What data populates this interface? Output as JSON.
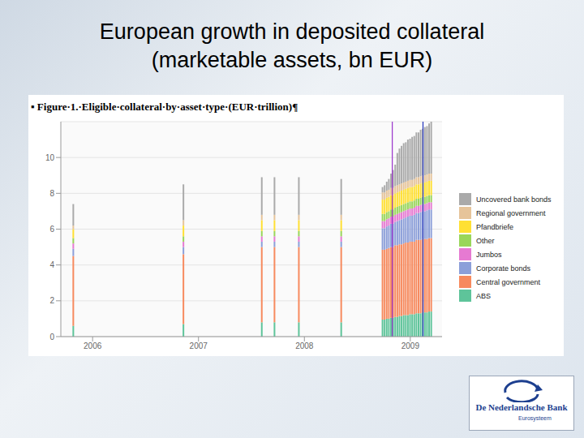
{
  "chart_data": {
    "type": "bar",
    "title": "European growth in deposited collateral (marketable assets, bn EUR)",
    "subtitle": "▪ Figure·1.·Eligible·collateral·by·asset·type·(EUR·trillion)¶",
    "x": [
      2005.82,
      2006.86,
      2007.6,
      2007.72,
      2007.95,
      2008.35,
      2008.74,
      2008.76,
      2008.78,
      2008.8,
      2008.82,
      2008.84,
      2008.86,
      2008.88,
      2008.9,
      2008.92,
      2008.94,
      2008.96,
      2008.98,
      2009.0,
      2009.02,
      2009.04,
      2009.06,
      2009.08,
      2009.1,
      2009.12,
      2009.14,
      2009.16,
      2009.18,
      2009.2
    ],
    "series": [
      {
        "name": "ABS",
        "color": "#5ec49a",
        "values": [
          0.6,
          0.7,
          0.8,
          0.8,
          0.8,
          0.8,
          0.95,
          0.95,
          1.0,
          1.0,
          1.05,
          1.05,
          1.1,
          1.1,
          1.15,
          1.15,
          1.2,
          1.2,
          1.2,
          1.25,
          1.25,
          1.25,
          1.3,
          1.3,
          1.3,
          1.35,
          1.35,
          1.35,
          1.4,
          1.4
        ]
      },
      {
        "name": "Central government",
        "color": "#f78a5e",
        "values": [
          3.9,
          3.9,
          4.2,
          4.2,
          4.2,
          4.2,
          3.9,
          3.9,
          3.9,
          3.95,
          3.95,
          3.95,
          4.0,
          4.0,
          4.0,
          4.0,
          4.0,
          4.05,
          4.05,
          4.05,
          4.05,
          4.05,
          4.1,
          4.1,
          4.1,
          4.1,
          4.1,
          4.1,
          4.1,
          4.1
        ]
      },
      {
        "name": "Corporate bonds",
        "color": "#8c9fd9",
        "values": [
          0.4,
          0.4,
          0.3,
          0.3,
          0.3,
          0.3,
          1.2,
          1.2,
          1.25,
          1.25,
          1.3,
          1.3,
          1.3,
          1.35,
          1.35,
          1.4,
          1.4,
          1.4,
          1.45,
          1.45,
          1.45,
          1.5,
          1.5,
          1.5,
          1.55,
          1.55,
          1.55,
          1.6,
          1.6,
          1.6
        ]
      },
      {
        "name": "Jumbos",
        "color": "#e67ad2",
        "values": [
          0.3,
          0.3,
          0.3,
          0.3,
          0.3,
          0.3,
          0.4,
          0.4,
          0.4,
          0.4,
          0.4,
          0.4,
          0.4,
          0.4,
          0.4,
          0.4,
          0.4,
          0.4,
          0.4,
          0.4,
          0.4,
          0.4,
          0.4,
          0.4,
          0.4,
          0.4,
          0.4,
          0.4,
          0.4,
          0.4
        ]
      },
      {
        "name": "Other",
        "color": "#99d65a",
        "values": [
          0.3,
          0.3,
          0.3,
          0.3,
          0.3,
          0.3,
          0.4,
          0.4,
          0.4,
          0.4,
          0.4,
          0.4,
          0.4,
          0.4,
          0.4,
          0.4,
          0.4,
          0.4,
          0.4,
          0.4,
          0.4,
          0.4,
          0.4,
          0.4,
          0.4,
          0.4,
          0.4,
          0.4,
          0.4,
          0.4
        ]
      },
      {
        "name": "Pfandbriefe",
        "color": "#ffe033",
        "values": [
          0.5,
          0.6,
          0.6,
          0.6,
          0.6,
          0.6,
          0.8,
          0.8,
          0.8,
          0.8,
          0.8,
          0.8,
          0.8,
          0.8,
          0.8,
          0.8,
          0.8,
          0.8,
          0.8,
          0.8,
          0.8,
          0.8,
          0.8,
          0.8,
          0.8,
          0.8,
          0.8,
          0.8,
          0.8,
          0.8
        ]
      },
      {
        "name": "Regional government",
        "color": "#e6c49a",
        "values": [
          0.2,
          0.3,
          0.3,
          0.3,
          0.3,
          0.3,
          0.4,
          0.4,
          0.4,
          0.4,
          0.4,
          0.4,
          0.4,
          0.4,
          0.4,
          0.4,
          0.4,
          0.4,
          0.4,
          0.4,
          0.4,
          0.4,
          0.4,
          0.4,
          0.4,
          0.4,
          0.4,
          0.4,
          0.4,
          0.4
        ]
      },
      {
        "name": "Uncovered bank bonds",
        "color": "#aaaaaa",
        "values": [
          1.2,
          2.0,
          2.1,
          2.1,
          2.1,
          2.0,
          0.3,
          0.4,
          0.5,
          0.6,
          0.8,
          1.0,
          1.2,
          1.8,
          2.0,
          2.1,
          2.2,
          2.2,
          2.3,
          2.3,
          2.4,
          2.4,
          2.5,
          2.5,
          2.6,
          2.6,
          2.7,
          2.7,
          2.8,
          2.9
        ]
      }
    ],
    "xlim": [
      2005.7,
      2009.3
    ],
    "xticks": [
      2006,
      2007,
      2008,
      2009
    ],
    "ylim": [
      0,
      12
    ],
    "yticks": [
      0,
      2,
      4,
      6,
      8,
      10
    ],
    "stacked": true,
    "grid": true,
    "legend": "right",
    "vlines": [
      {
        "x": 2008.83,
        "color": "#9933cc"
      },
      {
        "x": 2009.12,
        "color": "#2233bb"
      }
    ]
  },
  "logo": {
    "name": "De Nederlandsche Bank",
    "tagline": "Eurosysteem"
  }
}
